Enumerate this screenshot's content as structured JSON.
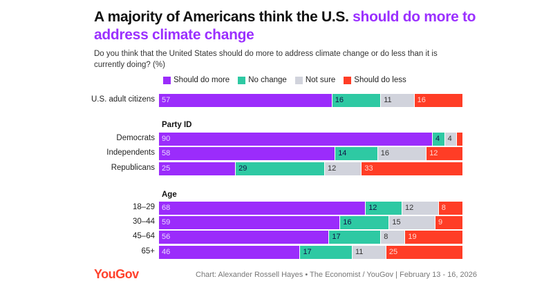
{
  "title_part1": "A majority of Americans think the U.S. ",
  "title_part2": "should do more to address climate change",
  "subtitle": "Do you think that the United States should do more to address climate change or do less than it is currently doing? (%)",
  "source": "Chart: Alexander Rossell Hayes • The Economist / YouGov | February 13 - 16, 2026",
  "logo": "YouGov",
  "colors": {
    "Should do more": "#9b2cfb",
    "No change": "#2ec9a3",
    "Not sure": "#d1d3dc",
    "Should do less": "#ff3d26",
    "accent": "#9b30ff"
  },
  "chart_data": {
    "type": "bar",
    "orientation": "horizontal-stacked",
    "xlim": [
      0,
      100
    ],
    "legend_position": "top",
    "series_names": [
      "Should do more",
      "No change",
      "Not sure",
      "Should do less"
    ],
    "groups": [
      {
        "label": "",
        "rows": [
          {
            "label": "U.S. adult citizens",
            "values": [
              57,
              16,
              11,
              16
            ]
          }
        ]
      },
      {
        "label": "Party ID",
        "rows": [
          {
            "label": "Democrats",
            "values": [
              90,
              4,
              4,
              2
            ]
          },
          {
            "label": "Independents",
            "values": [
              58,
              14,
              16,
              12
            ]
          },
          {
            "label": "Republicans",
            "values": [
              25,
              29,
              12,
              33
            ]
          }
        ]
      },
      {
        "label": "Age",
        "rows": [
          {
            "label": "18–29",
            "values": [
              68,
              12,
              12,
              8
            ]
          },
          {
            "label": "30–44",
            "values": [
              59,
              16,
              15,
              9
            ]
          },
          {
            "label": "45–64",
            "values": [
              56,
              17,
              8,
              19
            ]
          },
          {
            "label": "65+",
            "values": [
              46,
              17,
              11,
              25
            ]
          }
        ]
      }
    ]
  }
}
